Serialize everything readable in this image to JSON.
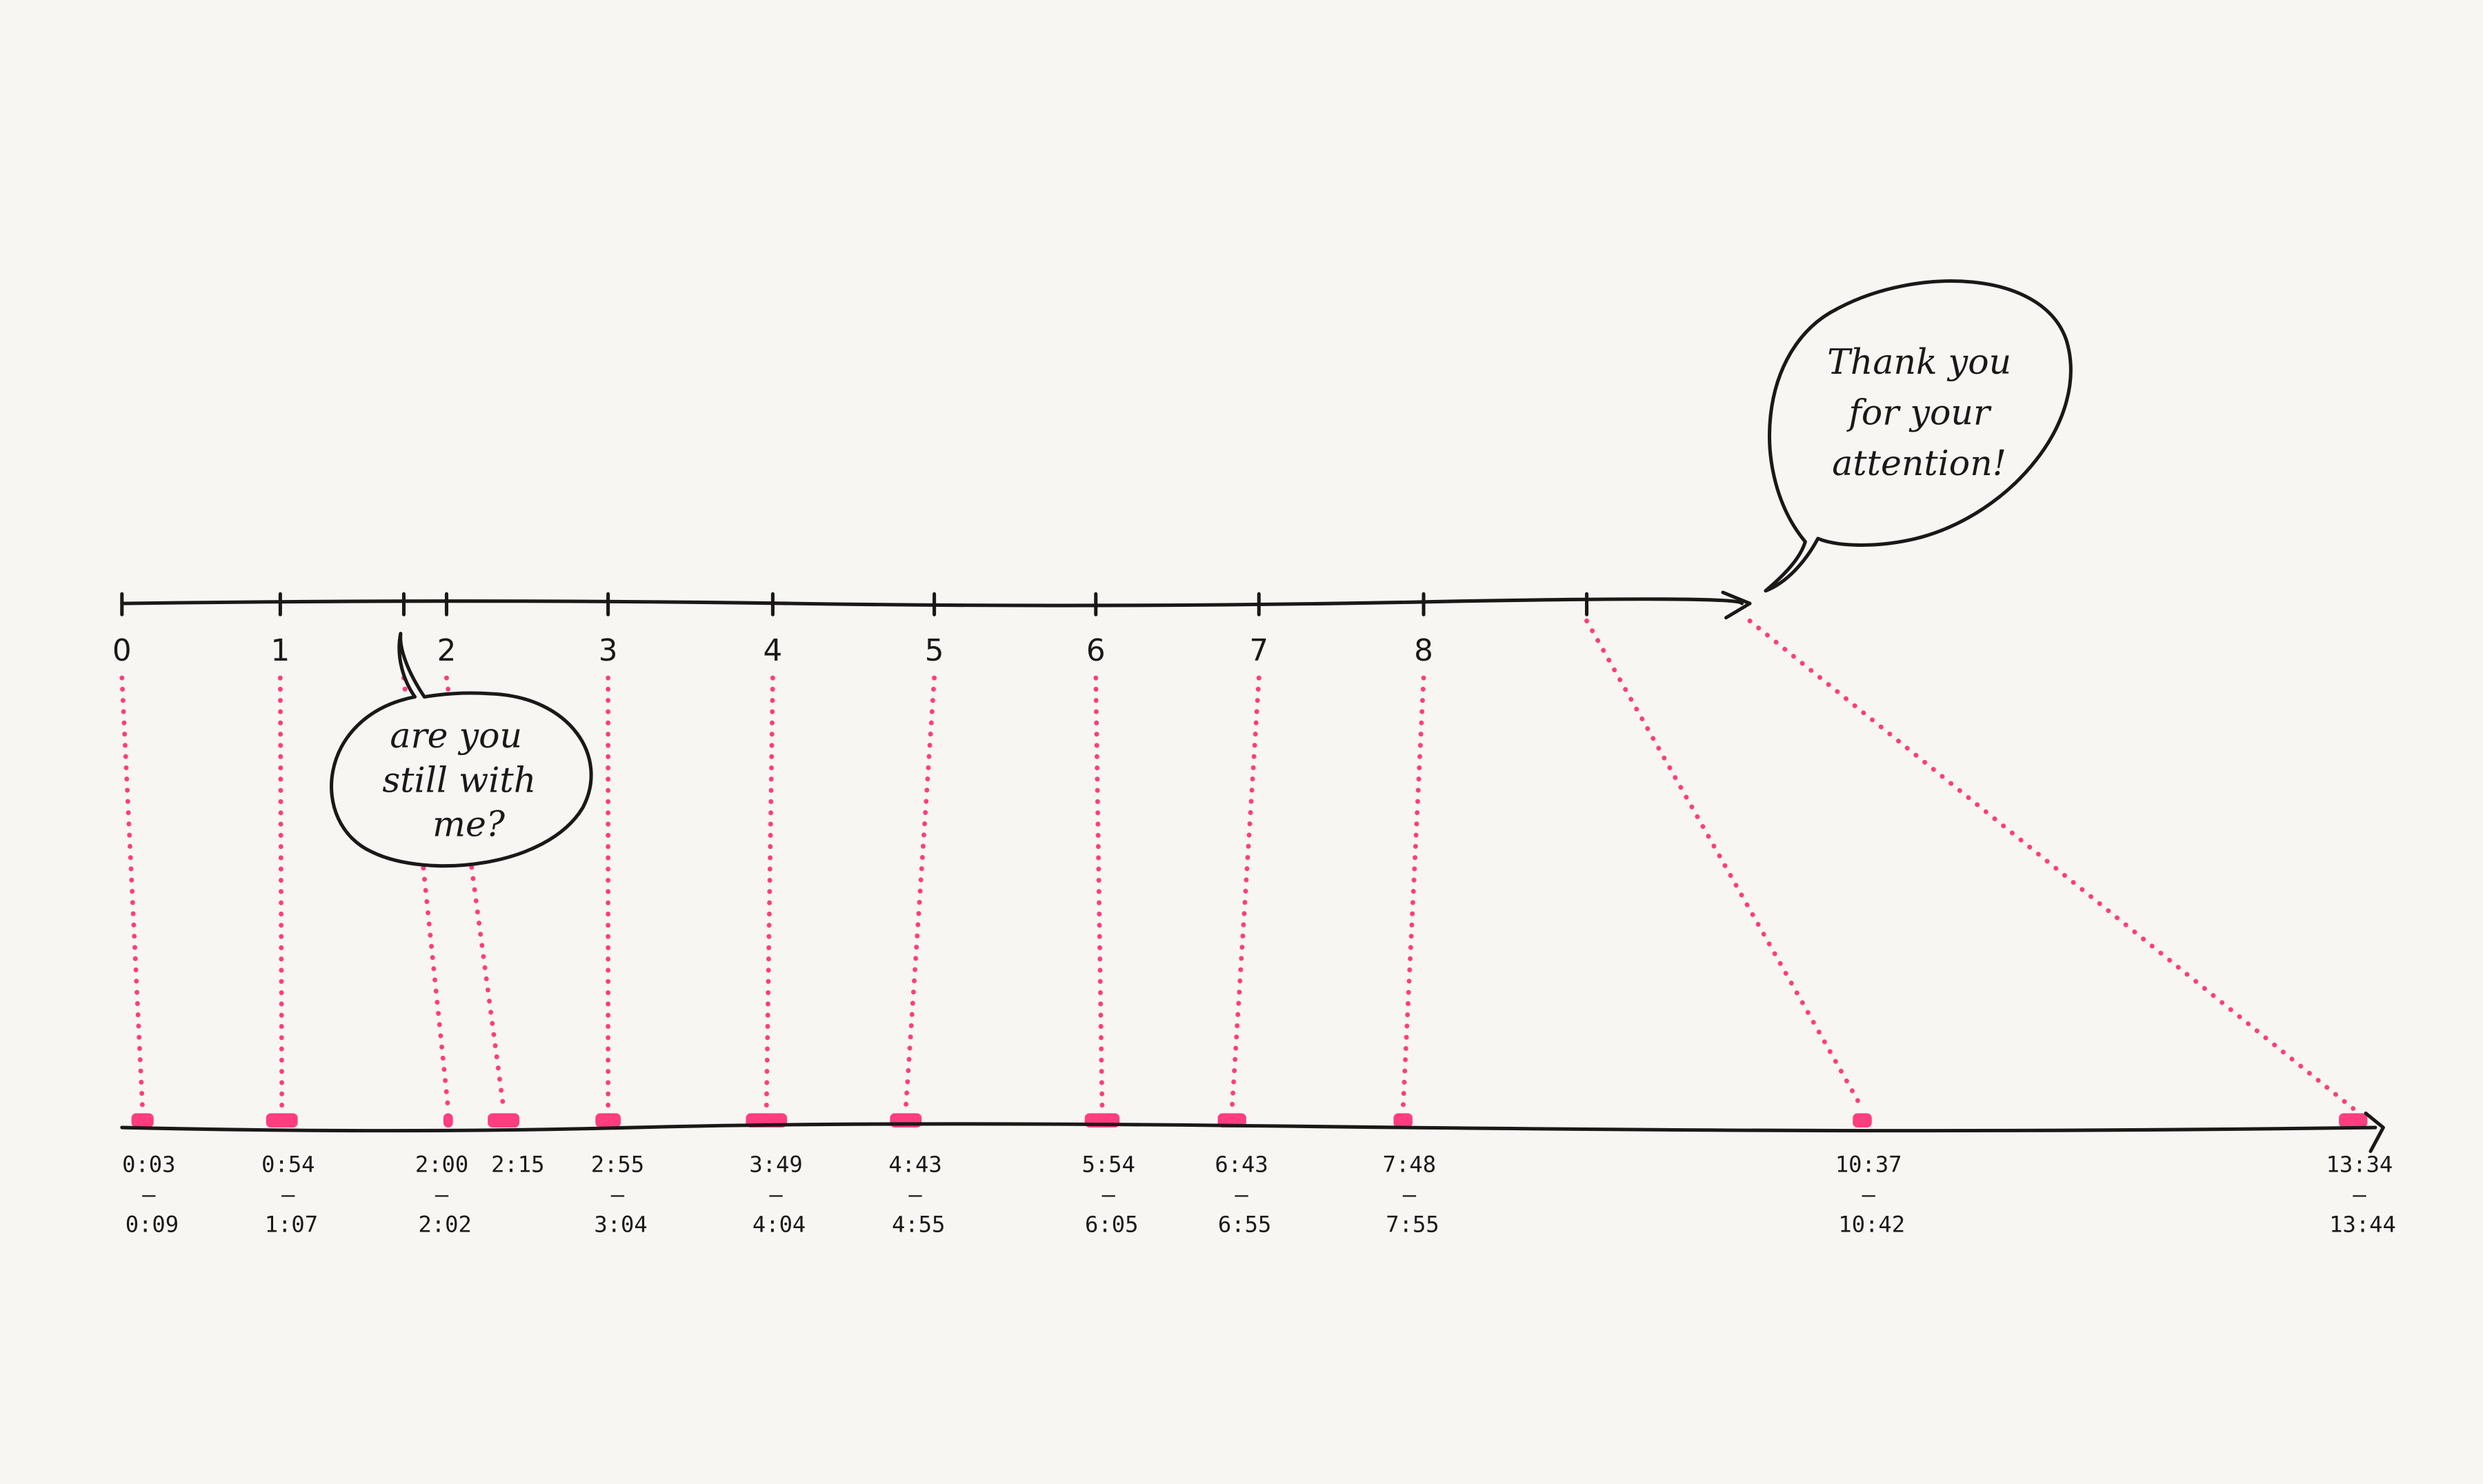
{
  "colors": {
    "ink": "#1c1818",
    "highlight": "#ff3d7f",
    "paper": "#f7f6f3"
  },
  "top_axis": {
    "tick_labels": [
      "0",
      "1",
      "2",
      "3",
      "4",
      "5",
      "6",
      "7",
      "8"
    ]
  },
  "segments": [
    {
      "start": "0:03",
      "end": "0:09"
    },
    {
      "start": "0:54",
      "end": "1:07"
    },
    {
      "start": "2:00",
      "end": "2:02"
    },
    {
      "start": "2:15",
      "end": null
    },
    {
      "start": "2:55",
      "end": "3:04"
    },
    {
      "start": "3:49",
      "end": "4:04"
    },
    {
      "start": "4:43",
      "end": "4:55"
    },
    {
      "start": "5:54",
      "end": "6:05"
    },
    {
      "start": "6:43",
      "end": "6:55"
    },
    {
      "start": "7:48",
      "end": "7:55"
    },
    {
      "start": "10:37",
      "end": "10:42"
    },
    {
      "start": "13:34",
      "end": "13:44"
    }
  ],
  "range_separator": "–",
  "bubbles": {
    "still_with_me": [
      "are you",
      "still with",
      "me?"
    ],
    "thank_you": [
      "Thank you",
      "for your",
      "attention!"
    ]
  }
}
